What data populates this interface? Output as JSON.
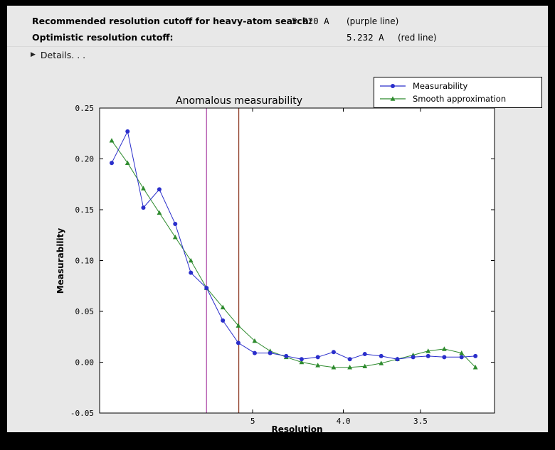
{
  "header": {
    "row1": {
      "label": "Recommended resolution cutoff for heavy-atom search:",
      "value": "5.920 A",
      "note": "(purple line)"
    },
    "row2": {
      "label": "Optimistic resolution cutoff:",
      "value": "5.232 A",
      "note": "(red line)"
    }
  },
  "details": {
    "label": "Details. . ."
  },
  "chart_data": {
    "type": "line",
    "title": "Anomalous measurability",
    "xlabel": "Resolution",
    "ylabel": "Measurability",
    "ylim": [
      -0.05,
      0.25
    ],
    "grid": false,
    "legend_position": "top-right",
    "x_axis": {
      "unit": "Angstrom",
      "transform": "1/d^2",
      "s2_range": [
        0.002,
        0.1
      ],
      "ticks": [
        {
          "d": 5.0,
          "label": "5"
        },
        {
          "d": 4.0,
          "label": "4.0"
        },
        {
          "d": 3.5,
          "label": "3.5"
        }
      ]
    },
    "y_ticks": [
      {
        "v": 0.25,
        "label": "0.25"
      },
      {
        "v": 0.2,
        "label": "0.20"
      },
      {
        "v": 0.15,
        "label": "0.15"
      },
      {
        "v": 0.1,
        "label": "0.10"
      },
      {
        "v": 0.05,
        "label": "0.05"
      },
      {
        "v": 0.0,
        "label": "0.00"
      },
      {
        "v": -0.05,
        "label": "-0.05"
      }
    ],
    "x_d": [
      14.14,
      10.58,
      8.82,
      7.71,
      6.94,
      6.37,
      5.92,
      5.54,
      5.24,
      4.97,
      4.75,
      4.55,
      4.38,
      4.22,
      4.08,
      3.95,
      3.84,
      3.73,
      3.63,
      3.54,
      3.46,
      3.38,
      3.3,
      3.24
    ],
    "series": [
      {
        "name": "Measurability",
        "color": "#2a2ecb",
        "marker": "circle",
        "values": [
          0.196,
          0.227,
          0.152,
          0.17,
          0.136,
          0.088,
          0.073,
          0.041,
          0.019,
          0.009,
          0.009,
          0.006,
          0.003,
          0.005,
          0.01,
          0.003,
          0.008,
          0.006,
          0.003,
          0.005,
          0.006,
          0.005,
          0.005,
          0.006
        ]
      },
      {
        "name": "Smooth approximation",
        "color": "#2e8b2e",
        "marker": "triangle",
        "values": [
          0.218,
          0.196,
          0.171,
          0.147,
          0.123,
          0.1,
          0.073,
          0.054,
          0.036,
          0.021,
          0.011,
          0.005,
          0.0,
          -0.003,
          -0.005,
          -0.005,
          -0.004,
          -0.001,
          0.003,
          0.007,
          0.011,
          0.013,
          0.009,
          -0.005
        ]
      }
    ],
    "vlines": [
      {
        "name": "purple line",
        "d": 5.92,
        "color": "#b356ae"
      },
      {
        "name": "red line",
        "d": 5.232,
        "color": "#8f3c26"
      }
    ]
  }
}
